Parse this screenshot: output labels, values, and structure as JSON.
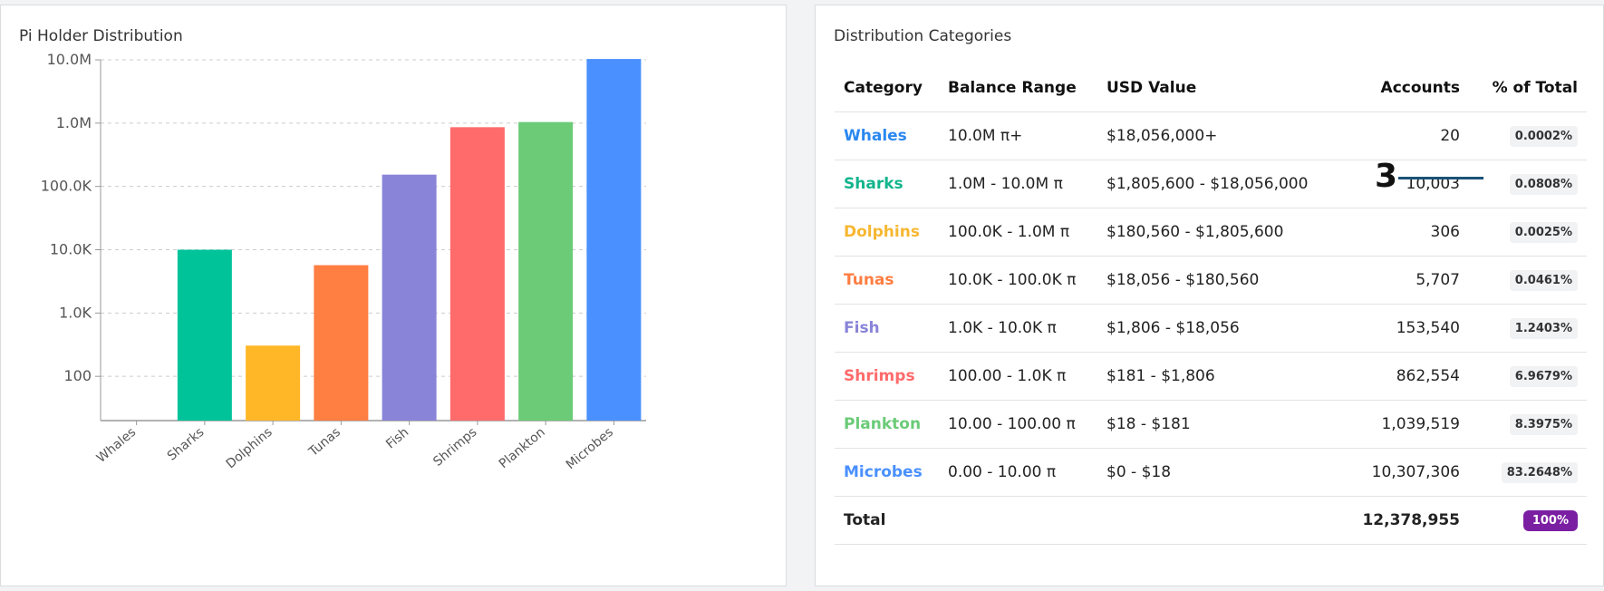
{
  "left_panel": {
    "title": "Pi Holder Distribution"
  },
  "chart_data": {
    "type": "bar",
    "scale": "log",
    "categories": [
      "Whales",
      "Sharks",
      "Dolphins",
      "Tunas",
      "Fish",
      "Shrimps",
      "Plankton",
      "Microbes"
    ],
    "values": [
      20,
      10003,
      306,
      5707,
      153540,
      862554,
      1039519,
      10307306
    ],
    "colors": [
      "#4a90ff",
      "#00c39a",
      "#ffb727",
      "#ff7e42",
      "#8984d8",
      "#ff6b6b",
      "#6bcb77",
      "#4a90ff"
    ],
    "ytick_values": [
      100,
      1000,
      10000,
      100000,
      1000000,
      10000000
    ],
    "ytick_labels": [
      "100",
      "1.0K",
      "10.0K",
      "100.0K",
      "1.0M",
      "10.0M"
    ],
    "ylim": [
      20,
      10000000
    ],
    "grid": true
  },
  "right_panel": {
    "title": "Distribution Categories",
    "headers": [
      "Category",
      "Balance Range",
      "USD Value",
      "Accounts",
      "% of Total"
    ],
    "rows": [
      {
        "category": "Whales",
        "color": "#2b88f0",
        "range": "10.0M π+",
        "usd": "$18,056,000+",
        "accounts": "20",
        "pct": "0.0002%"
      },
      {
        "category": "Sharks",
        "color": "#12b48c",
        "range": "1.0M - 10.0M π",
        "usd": "$1,805,600 - $18,056,000",
        "accounts": "10,003",
        "pct": "0.0808%"
      },
      {
        "category": "Dolphins",
        "color": "#f7b731",
        "range": "100.0K - 1.0M π",
        "usd": "$180,560 - $1,805,600",
        "accounts": "306",
        "pct": "0.0025%"
      },
      {
        "category": "Tunas",
        "color": "#ff7e42",
        "range": "10.0K - 100.0K π",
        "usd": "$18,056 - $180,560",
        "accounts": "5,707",
        "pct": "0.0461%"
      },
      {
        "category": "Fish",
        "color": "#8984d8",
        "range": "1.0K - 10.0K π",
        "usd": "$1,806 - $18,056",
        "accounts": "153,540",
        "pct": "1.2403%"
      },
      {
        "category": "Shrimps",
        "color": "#ff6b6b",
        "range": "100.00 - 1.0K π",
        "usd": "$181 - $1,806",
        "accounts": "862,554",
        "pct": "6.9679%"
      },
      {
        "category": "Plankton",
        "color": "#6bcb77",
        "range": "10.00 - 100.00 π",
        "usd": "$18 - $181",
        "accounts": "1,039,519",
        "pct": "8.3975%"
      },
      {
        "category": "Microbes",
        "color": "#4a90ff",
        "range": "0.00 - 10.00 π",
        "usd": "$0 - $18",
        "accounts": "10,307,306",
        "pct": "83.2648%"
      }
    ],
    "total": {
      "label": "Total",
      "accounts": "12,378,955",
      "pct": "100%",
      "badge_color": "#7b1fa2"
    }
  },
  "annotation": {
    "number": "3"
  }
}
